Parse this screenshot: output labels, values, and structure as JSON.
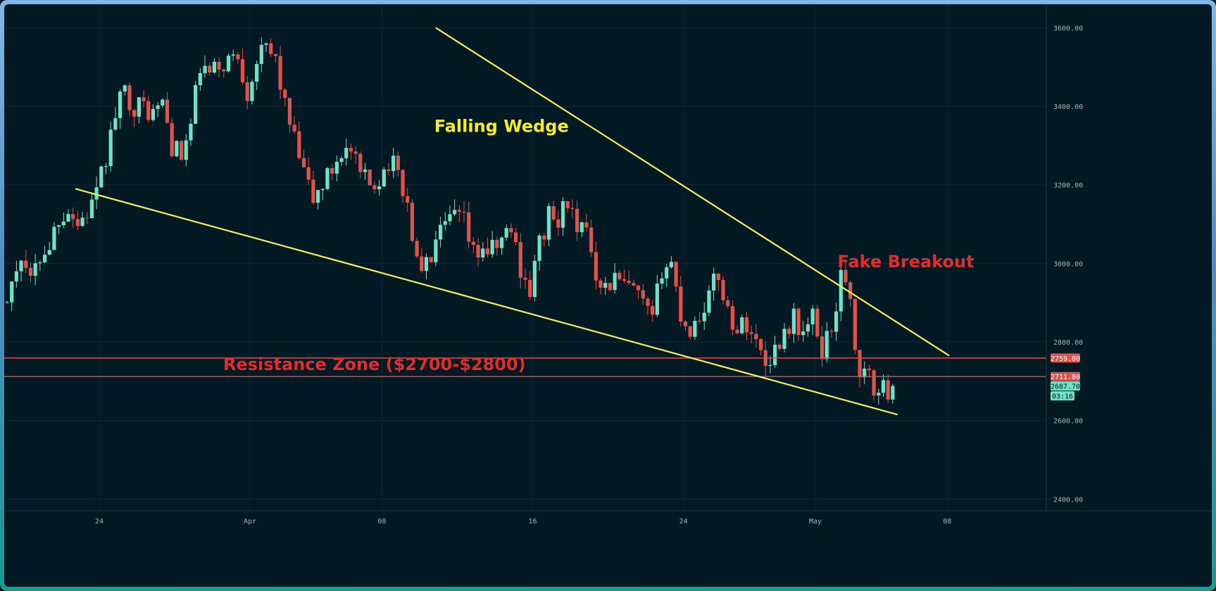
{
  "chart_data": {
    "type": "candlestick",
    "title": "",
    "xlabel": "",
    "ylabel": "",
    "ylim": [
      2370,
      3660
    ],
    "yticks": [
      2400,
      2600,
      2800,
      3000,
      3200,
      3400,
      3600
    ],
    "ytick_labels": [
      "2400.00",
      "2600.00",
      "2800.00",
      "3000.00",
      "3200.00",
      "3400.00",
      "3600.00"
    ],
    "xticks": [
      {
        "day": 24,
        "label": "24"
      },
      {
        "day": 32,
        "label": "Apr"
      },
      {
        "day": 39,
        "label": "08"
      },
      {
        "day": 47,
        "label": "16"
      },
      {
        "day": 55,
        "label": "24"
      },
      {
        "day": 62,
        "label": "May"
      },
      {
        "day": 69,
        "label": "08"
      }
    ],
    "candles_per_day": 4,
    "start_price": 2960,
    "path": [
      [
        0,
        2960
      ],
      [
        3,
        2870
      ],
      [
        4,
        2960
      ],
      [
        6,
        2900
      ],
      [
        9,
        3030
      ],
      [
        11,
        2950
      ],
      [
        13,
        3020
      ],
      [
        15,
        3050
      ],
      [
        17,
        3120
      ],
      [
        19,
        3140
      ],
      [
        21,
        3100
      ],
      [
        23,
        3130
      ],
      [
        25,
        3170
      ],
      [
        27,
        3270
      ],
      [
        29,
        3380
      ],
      [
        31,
        3440
      ],
      [
        33,
        3400
      ],
      [
        35,
        3400
      ],
      [
        37,
        3380
      ],
      [
        39,
        3410
      ],
      [
        41,
        3300
      ],
      [
        43,
        3270
      ],
      [
        45,
        3350
      ],
      [
        47,
        3500
      ],
      [
        49,
        3480
      ],
      [
        51,
        3500
      ],
      [
        53,
        3520
      ],
      [
        55,
        3530
      ],
      [
        57,
        3440
      ],
      [
        59,
        3520
      ],
      [
        61,
        3540
      ],
      [
        63,
        3520
      ],
      [
        65,
        3400
      ],
      [
        67,
        3310
      ],
      [
        69,
        3230
      ],
      [
        71,
        3160
      ],
      [
        73,
        3200
      ],
      [
        75,
        3240
      ],
      [
        77,
        3290
      ],
      [
        79,
        3280
      ],
      [
        81,
        3220
      ],
      [
        83,
        3200
      ],
      [
        85,
        3220
      ],
      [
        87,
        3260
      ],
      [
        89,
        3230
      ],
      [
        91,
        3150
      ],
      [
        93,
        3000
      ],
      [
        95,
        2990
      ],
      [
        97,
        3050
      ],
      [
        99,
        3090
      ],
      [
        101,
        3120
      ],
      [
        103,
        3100
      ],
      [
        105,
        3020
      ],
      [
        107,
        3040
      ],
      [
        109,
        3030
      ],
      [
        111,
        3060
      ],
      [
        113,
        3090
      ],
      [
        115,
        2990
      ],
      [
        117,
        2930
      ],
      [
        119,
        3050
      ],
      [
        121,
        3120
      ],
      [
        123,
        3100
      ],
      [
        125,
        3170
      ],
      [
        127,
        3060
      ],
      [
        129,
        3100
      ],
      [
        131,
        2980
      ],
      [
        133,
        2940
      ],
      [
        135,
        2960
      ],
      [
        137,
        2940
      ],
      [
        139,
        2930
      ],
      [
        141,
        2890
      ],
      [
        143,
        2850
      ],
      [
        145,
        2990
      ],
      [
        147,
        3000
      ],
      [
        149,
        2870
      ],
      [
        151,
        2830
      ],
      [
        153,
        2870
      ],
      [
        155,
        2920
      ],
      [
        157,
        2970
      ],
      [
        159,
        2880
      ],
      [
        161,
        2830
      ],
      [
        163,
        2850
      ],
      [
        165,
        2800
      ],
      [
        167,
        2750
      ],
      [
        169,
        2780
      ],
      [
        171,
        2830
      ],
      [
        173,
        2860
      ],
      [
        175,
        2820
      ],
      [
        177,
        2860
      ],
      [
        179,
        2780
      ],
      [
        181,
        2840
      ],
      [
        183,
        2960
      ],
      [
        185,
        2930
      ],
      [
        186,
        2760
      ],
      [
        187,
        2730
      ],
      [
        189,
        2700
      ],
      [
        191,
        2670
      ],
      [
        193,
        2680
      ],
      [
        194,
        2688
      ]
    ],
    "candle_colors": {
      "up": "#6fe3c8",
      "down": "#e0524a",
      "wick": "#9aa8b0"
    },
    "trendlines": [
      {
        "name": "upper-wedge-line",
        "from": [
          97.0,
          3600
        ],
        "to": [
          206.0,
          2765
        ],
        "color": "#f6ee5a"
      },
      {
        "name": "lower-wedge-line",
        "from": [
          20.5,
          3190
        ],
        "to": [
          195.0,
          2615
        ],
        "color": "#f6ee5a"
      }
    ],
    "hlines": [
      {
        "name": "resistance-upper-line",
        "price": 2759,
        "color": "#d9534f"
      },
      {
        "name": "resistance-lower-line",
        "price": 2711.8,
        "color": "#d9534f"
      }
    ],
    "price_labels": [
      {
        "text": "2759.00",
        "price": 2759,
        "bg": "#d9534f",
        "fg": "#ffffff"
      },
      {
        "text": "2711.80",
        "price": 2711.8,
        "bg": "#d9534f",
        "fg": "#ffffff"
      },
      {
        "text": "2687.70",
        "price": 2687.7,
        "bg": "#6fe3c8",
        "fg": "#05161e"
      }
    ],
    "countdown_label": {
      "text": "03:16",
      "bg": "#6fe3c8",
      "fg": "#05161e"
    },
    "annotations": [
      {
        "name": "falling-wedge-label",
        "text": "Falling Wedge",
        "day": 42,
        "price": 3335,
        "color": "#f6ee22",
        "size": 24
      },
      {
        "name": "fake-breakout-label",
        "text": "Fake Breakout",
        "day": 63.4,
        "price": 2990,
        "color": "#e62b2b",
        "size": 24
      },
      {
        "name": "resistance-zone-label",
        "text": "Resistance Zone ($2700-$2800)",
        "day": 30.8,
        "price": 2728,
        "color": "#e62b2b",
        "size": 24
      }
    ]
  }
}
